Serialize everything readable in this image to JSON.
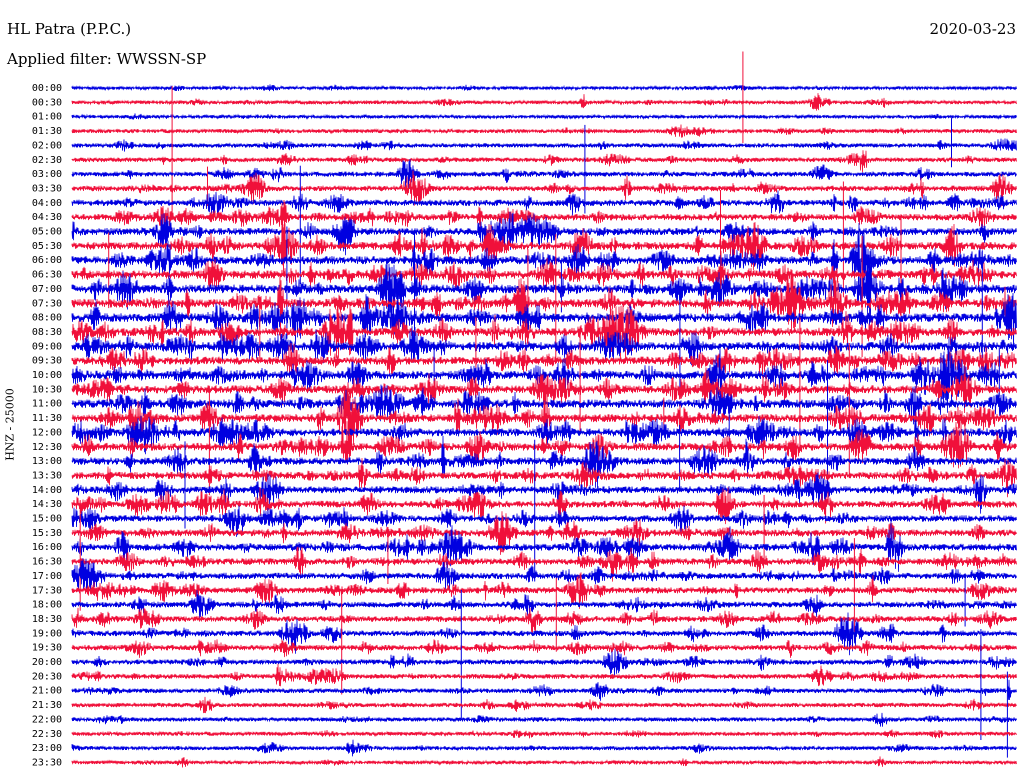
{
  "header": {
    "station": "HL Patra (P.P.C.)",
    "filter": "Applied filter: WWSSN-SP",
    "date": "2020-03-23",
    "channel": "HNZ - 25000"
  },
  "chart_data": {
    "type": "line",
    "title": "HL Patra (P.P.C.)",
    "ylabel": "HNZ - 25000",
    "row_labels": [
      "00:00",
      "00:30",
      "01:00",
      "01:30",
      "02:00",
      "02:30",
      "03:00",
      "03:30",
      "04:00",
      "04:30",
      "05:00",
      "05:30",
      "06:00",
      "06:30",
      "07:00",
      "07:30",
      "08:00",
      "08:30",
      "09:00",
      "09:30",
      "10:00",
      "10:30",
      "11:00",
      "11:30",
      "12:00",
      "12:30",
      "13:00",
      "13:30",
      "14:00",
      "14:30",
      "15:00",
      "15:30",
      "16:00",
      "16:30",
      "17:00",
      "17:30",
      "18:00",
      "18:30",
      "19:00",
      "19:30",
      "20:00",
      "20:30",
      "21:00",
      "21:30",
      "22:00",
      "22:30",
      "23:00",
      "23:30"
    ],
    "series_colors": [
      "#0000e0",
      "#f0103a"
    ],
    "activity_levels": [
      0.15,
      0.2,
      0.15,
      0.25,
      0.3,
      0.35,
      0.4,
      0.5,
      0.6,
      0.65,
      0.75,
      0.85,
      0.9,
      0.95,
      1.0,
      1.0,
      1.0,
      0.95,
      0.95,
      0.9,
      0.95,
      0.9,
      0.95,
      0.9,
      0.9,
      0.85,
      0.8,
      0.75,
      0.75,
      0.7,
      0.65,
      0.7,
      0.7,
      0.65,
      0.6,
      0.6,
      0.55,
      0.55,
      0.5,
      0.5,
      0.45,
      0.4,
      0.35,
      0.3,
      0.3,
      0.25,
      0.25,
      0.2
    ],
    "grid": false
  }
}
